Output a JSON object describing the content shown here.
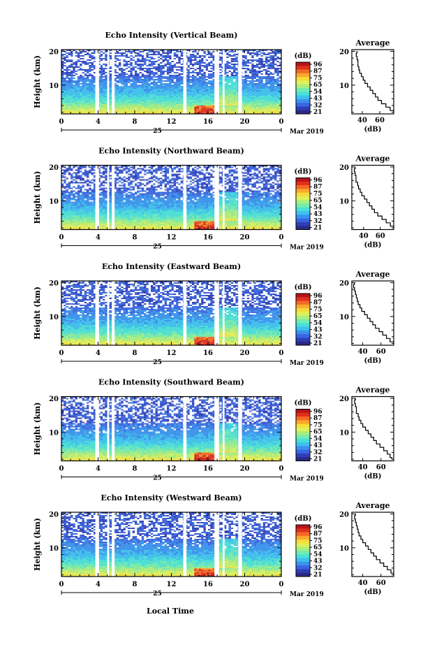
{
  "colors": {
    "scale": [
      "#2a2a86",
      "#2f3fb8",
      "#3a66e0",
      "#3a93ee",
      "#3dc1ef",
      "#49e0d8",
      "#73ecb0",
      "#a9ef7e",
      "#dff05a",
      "#f6dd3a",
      "#fba82e",
      "#f46a25",
      "#e0301c",
      "#b5141a"
    ],
    "gap": "#ffffff"
  },
  "common": {
    "month_label": "Mar 2019",
    "day_label": "25",
    "local_time_label": "Local Time",
    "colorbar_unit": "(dB)",
    "colorbar_ticks": [
      "96",
      "87",
      "75",
      "65",
      "54",
      "43",
      "32",
      "21"
    ]
  },
  "chart_data": [
    {
      "type": "heatmap",
      "title": "Echo Intensity (Vertical Beam)",
      "ylabel": "Height (km)",
      "xlabel": "Local Time",
      "x_ticks": [
        "0",
        "4",
        "8",
        "12",
        "16",
        "20",
        "0"
      ],
      "y_ticks": [
        "20",
        "10"
      ],
      "xlim": [
        0,
        24
      ],
      "ylim": [
        1.5,
        20.5
      ],
      "colorbar": {
        "unit": "(dB)",
        "ticks": [
          "96",
          "87",
          "75",
          "65",
          "54",
          "43",
          "32",
          "21"
        ]
      },
      "profile": {
        "title": "Average",
        "xlabel": "(dB)",
        "x_ticks": [
          "40",
          "60"
        ],
        "y_ticks": [
          "20",
          "10"
        ],
        "xlim": [
          28,
          76
        ],
        "points": [
          [
            34,
            20
          ],
          [
            33,
            19
          ],
          [
            34,
            18
          ],
          [
            35,
            17
          ],
          [
            35,
            16
          ],
          [
            36,
            15
          ],
          [
            37,
            14
          ],
          [
            39,
            13
          ],
          [
            41,
            12
          ],
          [
            43,
            11
          ],
          [
            46,
            10
          ],
          [
            49,
            9
          ],
          [
            52,
            8
          ],
          [
            55,
            7
          ],
          [
            58,
            6
          ],
          [
            62,
            5
          ],
          [
            67,
            4
          ],
          [
            72,
            3
          ],
          [
            76,
            2
          ]
        ]
      }
    },
    {
      "type": "heatmap",
      "title": "Echo Intensity (Northward Beam)",
      "ylabel": "Height (km)",
      "xlabel": "Local Time",
      "x_ticks": [
        "0",
        "4",
        "8",
        "12",
        "16",
        "20",
        "0"
      ],
      "y_ticks": [
        "20",
        "10"
      ],
      "xlim": [
        0,
        24
      ],
      "ylim": [
        1.5,
        20.5
      ],
      "colorbar": {
        "unit": "(dB)",
        "ticks": [
          "96",
          "87",
          "75",
          "65",
          "54",
          "43",
          "32",
          "21"
        ]
      },
      "profile": {
        "title": "Average",
        "xlabel": "(dB)",
        "x_ticks": [
          "40",
          "60"
        ],
        "y_ticks": [
          "20",
          "10"
        ],
        "xlim": [
          26,
          76
        ],
        "points": [
          [
            30,
            20
          ],
          [
            29,
            19
          ],
          [
            30,
            18
          ],
          [
            31,
            17
          ],
          [
            31,
            16
          ],
          [
            33,
            15
          ],
          [
            34,
            14
          ],
          [
            36,
            13
          ],
          [
            38,
            12
          ],
          [
            41,
            11
          ],
          [
            44,
            10
          ],
          [
            47,
            9
          ],
          [
            50,
            8
          ],
          [
            53,
            7
          ],
          [
            57,
            6
          ],
          [
            62,
            5
          ],
          [
            67,
            4
          ],
          [
            72,
            3
          ],
          [
            76,
            2
          ]
        ]
      }
    },
    {
      "type": "heatmap",
      "title": "Echo Intensity (Eastward Beam)",
      "ylabel": "Height (km)",
      "xlabel": "Local Time",
      "x_ticks": [
        "0",
        "4",
        "8",
        "12",
        "16",
        "20",
        "0"
      ],
      "y_ticks": [
        "20",
        "10"
      ],
      "xlim": [
        0,
        24
      ],
      "ylim": [
        1.5,
        20.5
      ],
      "colorbar": {
        "unit": "(dB)",
        "ticks": [
          "96",
          "87",
          "75",
          "65",
          "54",
          "43",
          "32",
          "21"
        ]
      },
      "profile": {
        "title": "Average",
        "xlabel": "(dB)",
        "x_ticks": [
          "40",
          "60"
        ],
        "y_ticks": [
          "20",
          "10"
        ],
        "xlim": [
          28,
          74
        ],
        "points": [
          [
            31,
            20
          ],
          [
            30,
            19
          ],
          [
            31,
            18
          ],
          [
            32,
            17
          ],
          [
            33,
            16
          ],
          [
            34,
            15
          ],
          [
            35,
            14
          ],
          [
            37,
            13
          ],
          [
            39,
            12
          ],
          [
            42,
            11
          ],
          [
            45,
            10
          ],
          [
            48,
            9
          ],
          [
            51,
            8
          ],
          [
            54,
            7
          ],
          [
            58,
            6
          ],
          [
            62,
            5
          ],
          [
            66,
            4
          ],
          [
            70,
            3
          ],
          [
            74,
            2
          ]
        ]
      }
    },
    {
      "type": "heatmap",
      "title": "Echo Intensity (Southward Beam)",
      "ylabel": "Height (km)",
      "xlabel": "Local Time",
      "x_ticks": [
        "0",
        "4",
        "8",
        "12",
        "16",
        "20",
        "0"
      ],
      "y_ticks": [
        "20",
        "10"
      ],
      "xlim": [
        0,
        24
      ],
      "ylim": [
        1.5,
        20.5
      ],
      "colorbar": {
        "unit": "(dB)",
        "ticks": [
          "96",
          "87",
          "75",
          "65",
          "54",
          "43",
          "32",
          "21"
        ]
      },
      "profile": {
        "title": "Average",
        "xlabel": "(dB)",
        "x_ticks": [
          "40",
          "60"
        ],
        "y_ticks": [
          "20",
          "10"
        ],
        "xlim": [
          28,
          74
        ],
        "points": [
          [
            32,
            20
          ],
          [
            31,
            19
          ],
          [
            32,
            18
          ],
          [
            33,
            17
          ],
          [
            33,
            16
          ],
          [
            35,
            15
          ],
          [
            36,
            14
          ],
          [
            38,
            13
          ],
          [
            40,
            12
          ],
          [
            43,
            11
          ],
          [
            46,
            10
          ],
          [
            49,
            9
          ],
          [
            52,
            8
          ],
          [
            55,
            7
          ],
          [
            59,
            6
          ],
          [
            63,
            5
          ],
          [
            67,
            4
          ],
          [
            70,
            3
          ],
          [
            72,
            2
          ]
        ]
      }
    },
    {
      "type": "heatmap",
      "title": "Echo Intensity (Westward Beam)",
      "ylabel": "Height (km)",
      "xlabel": "Local Time",
      "x_ticks": [
        "0",
        "4",
        "8",
        "12",
        "16",
        "20",
        "0"
      ],
      "y_ticks": [
        "20",
        "10"
      ],
      "xlim": [
        0,
        24
      ],
      "ylim": [
        1.5,
        20.5
      ],
      "colorbar": {
        "unit": "(dB)",
        "ticks": [
          "96",
          "87",
          "75",
          "65",
          "54",
          "43",
          "32",
          "21"
        ]
      },
      "profile": {
        "title": "Average",
        "xlabel": "(dB)",
        "x_ticks": [
          "40",
          "60"
        ],
        "y_ticks": [
          "20",
          "10"
        ],
        "xlim": [
          28,
          74
        ],
        "points": [
          [
            32,
            20
          ],
          [
            31,
            19
          ],
          [
            32,
            18
          ],
          [
            33,
            17
          ],
          [
            34,
            16
          ],
          [
            35,
            15
          ],
          [
            36,
            14
          ],
          [
            38,
            13
          ],
          [
            40,
            12
          ],
          [
            43,
            11
          ],
          [
            46,
            10
          ],
          [
            49,
            9
          ],
          [
            52,
            8
          ],
          [
            55,
            7
          ],
          [
            59,
            6
          ],
          [
            63,
            5
          ],
          [
            67,
            4
          ],
          [
            71,
            3
          ],
          [
            74,
            2
          ]
        ]
      }
    }
  ]
}
